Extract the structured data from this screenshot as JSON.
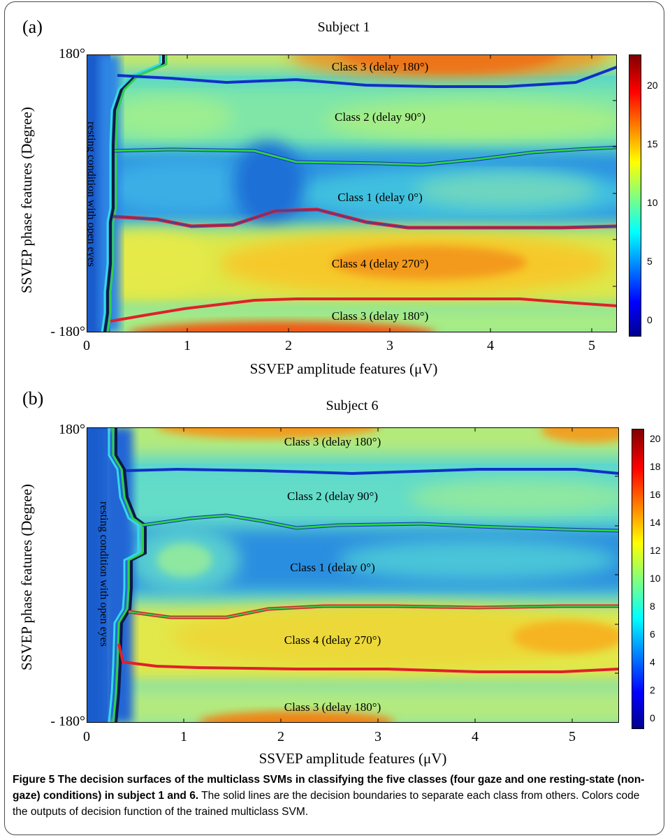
{
  "figure": {
    "panels": [
      {
        "letter": "(a)",
        "title": "Subject 1",
        "y_top_label": "180°",
        "y_bottom_label": "- 180°",
        "ylabel": "SSVEP phase features (Degree)",
        "xlabel": "SSVEP amplitude features (μV)",
        "x_ticks": [
          "0",
          "1",
          "2",
          "3",
          "4",
          "5"
        ],
        "colorbar_ticks": [
          "0",
          "5",
          "10",
          "15",
          "20"
        ],
        "resting_label": "resting condition with open eyes",
        "class_labels": [
          "Class 3 (delay 180°)",
          "Class 2 (delay 90°)",
          "Class 1 (delay 0°)",
          "Class 4 (delay 270°)",
          "Class 3 (delay 180°)"
        ]
      },
      {
        "letter": "(b)",
        "title": "Subject 6",
        "y_top_label": "180°",
        "y_bottom_label": "- 180°",
        "ylabel": "SSVEP phase features (Degree)",
        "xlabel": "SSVEP amplitude features (μV)",
        "x_ticks": [
          "0",
          "1",
          "2",
          "3",
          "4",
          "5"
        ],
        "colorbar_ticks": [
          "0",
          "2",
          "4",
          "6",
          "8",
          "10",
          "12",
          "14",
          "16",
          "18",
          "20"
        ],
        "resting_label": "resting condition with open eyes",
        "class_labels": [
          "Class 3 (delay 180°)",
          "Class 2 (delay 90°)",
          "Class 1 (delay 0°)",
          "Class 4 (delay 270°)",
          "Class 3 (delay 180°)"
        ]
      }
    ],
    "caption_bold": "Figure 5 The decision surfaces of the multiclass SVMs in classifying the five classes (four gaze and one resting-state (non-gaze) conditions) in subject 1 and 6.",
    "caption_text": " The solid lines are the decision boundaries to separate each class from others. Colors code the outputs of decision function of the trained multiclass SVM."
  },
  "chart_data": [
    {
      "type": "heatmap",
      "title": "Subject 1",
      "xlabel": "SSVEP amplitude features (μV)",
      "ylabel": "SSVEP phase features (Degree)",
      "xlim": [
        0,
        5.25
      ],
      "ylim": [
        -180,
        180
      ],
      "colorbar_range": [
        -1,
        23
      ],
      "colormap": "jet",
      "regions": [
        {
          "name": "Class 3 (delay 180°)",
          "x": 2.8,
          "y": 160
        },
        {
          "name": "Class 2 (delay 90°)",
          "x": 2.8,
          "y": 95
        },
        {
          "name": "Class 1 (delay 0°)",
          "x": 2.8,
          "y": 5
        },
        {
          "name": "Class 4 (delay 270°)",
          "x": 2.8,
          "y": -85
        },
        {
          "name": "Class 3 (delay 180°)",
          "x": 2.8,
          "y": -163
        },
        {
          "name": "resting condition with open eyes",
          "x": 0.05,
          "y": 0
        }
      ]
    },
    {
      "type": "heatmap",
      "title": "Subject 6",
      "xlabel": "SSVEP amplitude features (μV)",
      "ylabel": "SSVEP phase features (Degree)",
      "xlim": [
        0,
        5.5
      ],
      "ylim": [
        -180,
        180
      ],
      "colorbar_range": [
        -1,
        20.5
      ],
      "colormap": "jet",
      "regions": [
        {
          "name": "Class 3 (delay 180°)",
          "x": 2.9,
          "y": 160
        },
        {
          "name": "Class 2 (delay 90°)",
          "x": 2.9,
          "y": 90
        },
        {
          "name": "Class 1 (delay 0°)",
          "x": 2.9,
          "y": 5
        },
        {
          "name": "Class 4 (delay 270°)",
          "x": 2.9,
          "y": -88
        },
        {
          "name": "Class 3 (delay 180°)",
          "x": 2.9,
          "y": -165
        },
        {
          "name": "resting condition with open eyes",
          "x": 0.05,
          "y": 0
        }
      ]
    }
  ]
}
